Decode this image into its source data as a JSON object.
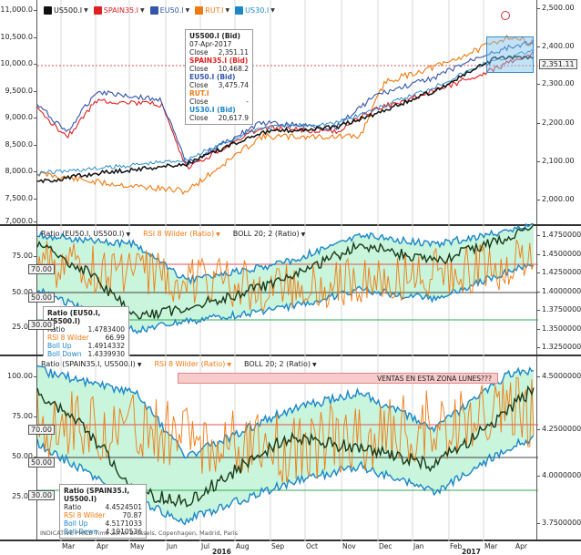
{
  "main": {
    "legend": [
      {
        "label": "US500.I",
        "color": "#111111"
      },
      {
        "label": "SPAIN35.I",
        "color": "#e02020"
      },
      {
        "label": "EU50.I",
        "color": "#3355aa"
      },
      {
        "label": "RUT.I",
        "color": "#f07a10"
      },
      {
        "label": "US30.I",
        "color": "#1b86c8"
      }
    ],
    "left_ticks": [
      "11,000.0",
      "10,500.0",
      "10,000.0",
      "9,500.0",
      "9,000.0",
      "8,500.0",
      "8,000.0",
      "7,500.0",
      "7,000.0"
    ],
    "right_ticks": [
      "2,500.00",
      "2,400.00",
      "2,300.00",
      "2,200.00",
      "2,100.00",
      "2,000.00"
    ],
    "last_price": "2,351.11",
    "tooltip": {
      "title": "US500.I (Bid)",
      "date": "07-Apr-2017",
      "close1_label": "Close",
      "close1": "2,351.11",
      "spain_title": "SPAIN35.I (Bid)",
      "close2_label": "Close",
      "close2": "10,468.2",
      "eu_title": "EU50.I (Bid)",
      "close3_label": "Close",
      "close3": "3,475.74",
      "rut_title": "RUT.I",
      "close4_label": "Close",
      "close4": "-",
      "us30_title": "US30.I (Bid)",
      "close5_label": "Close",
      "close5": "20,617.9"
    }
  },
  "panel2": {
    "legend": [
      "Ratio (EU50.I, US500.I)",
      "RSI 8 Wilder (Ratio)",
      "BOLL 20; 2 (Ratio)"
    ],
    "left_ticks": [
      "75.00",
      "50.00",
      "25.00"
    ],
    "level_boxes": [
      "70.00",
      "50.00",
      "30.00"
    ],
    "right_ticks": [
      "1.4750000",
      "1.4500000",
      "1.4250000",
      "1.4000000",
      "1.3750000",
      "1.3500000",
      "1.3250000"
    ],
    "tooltip": {
      "title": "Ratio (EU50.I, US500.I)",
      "ratio_label": "Ratio",
      "ratio": "1.4783400",
      "rsi_label": "RSI 8 Wilder",
      "rsi": "66.99",
      "up_label": "Boll Up",
      "up": "1.4914332",
      "down_label": "Boll Down",
      "down": "1.4339930"
    }
  },
  "panel3": {
    "legend": [
      "Ratio (SPAIN35.I, US500.I)",
      "RSI 8 Wilder (Ratio)",
      "BOLL 20; 2 (Ratio)"
    ],
    "left_ticks": [
      "100.00",
      "75.00",
      "50.00",
      "25.00"
    ],
    "level_boxes": [
      "70.00",
      "50.00",
      "30.00"
    ],
    "right_ticks": [
      "4.5000000",
      "4.2500000",
      "4.0000000",
      "3.7500000"
    ],
    "annotation": "VENTAS EN ESTA ZONA LUNES???",
    "tooltip": {
      "title": "Ratio (SPAIN35.I, US500.I)",
      "ratio_label": "Ratio",
      "ratio": "4.4524501",
      "rsi_label": "RSI 8 Wilder",
      "rsi": "70.87",
      "up_label": "Boll Up",
      "up": "4.5171033",
      "down_label": "Boll Down",
      "down": "4.1910536"
    },
    "footer": "INDICATIVE PRICE   Time Zone: Brussels, Copenhagen, Madrid, Paris"
  },
  "time_axis": {
    "months": [
      "Mar",
      "Apr",
      "May",
      "Jun",
      "Jul",
      "Aug",
      "Sep",
      "Oct",
      "Nov",
      "Dec",
      "Jan",
      "Feb",
      "Mar",
      "Apr"
    ],
    "years": [
      "2016",
      "2017"
    ]
  },
  "colors": {
    "rsi": "#f07a10",
    "boll_fill": "#c9f5dc",
    "boll_line": "#1b86c8",
    "ratio": "#1a3a1a",
    "level_red": "#e05050",
    "level_green": "#2faa55"
  }
}
